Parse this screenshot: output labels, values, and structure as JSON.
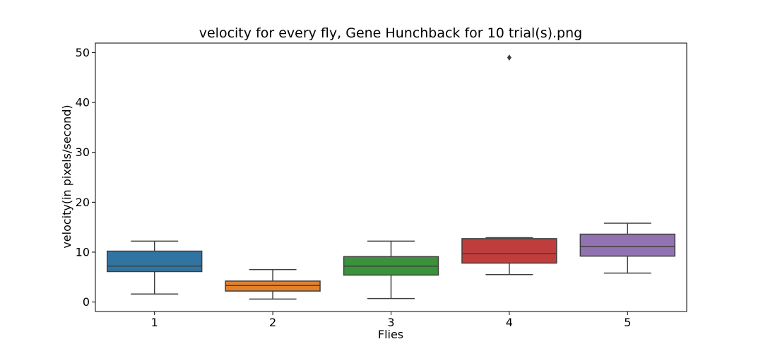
{
  "chart_data": {
    "type": "box",
    "title": "velocity for every fly, Gene Hunchback for 10 trial(s).png",
    "xlabel": "Flies",
    "ylabel": "velocity(in pixels/second)",
    "ylim": [
      -1.9,
      51.9
    ],
    "yticks": [
      0,
      10,
      20,
      30,
      40,
      50
    ],
    "grid": false,
    "categories": [
      "1",
      "2",
      "3",
      "4",
      "5"
    ],
    "boxes": [
      {
        "category": "1",
        "whisker_low": 1.6,
        "q1": 6.1,
        "median": 7.2,
        "q3": 10.2,
        "whisker_high": 12.2,
        "outliers": [],
        "color": "#3274a1"
      },
      {
        "category": "2",
        "whisker_low": 0.6,
        "q1": 2.2,
        "median": 3.3,
        "q3": 4.2,
        "whisker_high": 6.5,
        "outliers": [],
        "color": "#e1812c"
      },
      {
        "category": "3",
        "whisker_low": 0.7,
        "q1": 5.4,
        "median": 7.2,
        "q3": 9.1,
        "whisker_high": 12.2,
        "outliers": [],
        "color": "#3a923a"
      },
      {
        "category": "4",
        "whisker_low": 5.5,
        "q1": 7.8,
        "median": 9.7,
        "q3": 12.7,
        "whisker_high": 12.9,
        "outliers": [
          49.0
        ],
        "color": "#c03d3e"
      },
      {
        "category": "5",
        "whisker_low": 5.8,
        "q1": 9.2,
        "median": 11.1,
        "q3": 13.6,
        "whisker_high": 15.8,
        "outliers": [],
        "color": "#9372b2"
      }
    ]
  }
}
